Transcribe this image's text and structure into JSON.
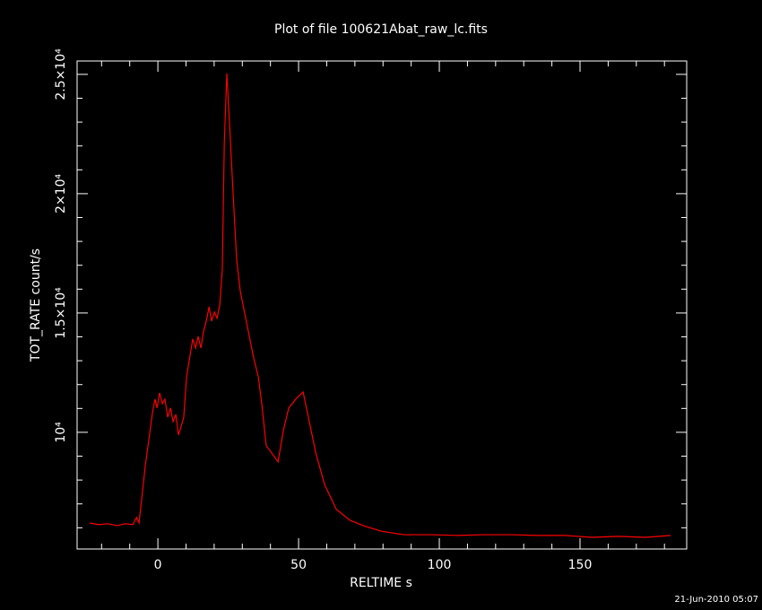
{
  "chart_data": {
    "type": "line",
    "title": "Plot of file 100621Abat_raw_lc.fits",
    "xlabel": "RELTIME  s",
    "ylabel": "TOT_RATE  count/s",
    "timestamp": "21-Jun-2010 05:07",
    "x": [
      -24.2,
      -21,
      -17.8,
      -14.6,
      -11.5,
      -8.9,
      -7.6,
      -6.7,
      -5.7,
      -4.5,
      -3.2,
      -1.9,
      -1.0,
      -0.3,
      0.6,
      1.6,
      2.5,
      3.5,
      4.5,
      5.4,
      6.4,
      7.3,
      8.3,
      9.2,
      10.2,
      11.5,
      12.4,
      13.4,
      14.3,
      15.3,
      16.2,
      17.2,
      18.2,
      19.1,
      20.1,
      21.0,
      22.0,
      22.9,
      23.6,
      24.5,
      25.5,
      26.8,
      28.0,
      29.3,
      30.9,
      32.5,
      34.1,
      35.7,
      36.9,
      38.5,
      40.4,
      42.7,
      44.6,
      46.5,
      49.0,
      51.6,
      53.8,
      56.1,
      59.2,
      63.4,
      68.2,
      72.9,
      79.3,
      87.3,
      96.8,
      106.4,
      115.9,
      125.5,
      135.0,
      144.6,
      154.1,
      163.7,
      173.2,
      182.2
    ],
    "series": [
      {
        "name": "TOT_RATE",
        "color": "#ff0000",
        "values": [
          6200,
          6130,
          6170,
          6090,
          6170,
          6130,
          6430,
          6200,
          7260,
          8570,
          9700,
          10830,
          11390,
          11020,
          11650,
          11200,
          11390,
          10640,
          11020,
          10450,
          10750,
          9890,
          10260,
          10640,
          12330,
          13270,
          13910,
          13530,
          14020,
          13530,
          14210,
          14660,
          15260,
          14660,
          15040,
          14780,
          15340,
          16840,
          22110,
          25040,
          22860,
          19850,
          17220,
          15900,
          14960,
          14020,
          13080,
          12330,
          11200,
          9440,
          9140,
          8760,
          10080,
          11020,
          11390,
          11690,
          10450,
          9140,
          7820,
          6770,
          6320,
          6090,
          5860,
          5710,
          5710,
          5680,
          5710,
          5710,
          5680,
          5680,
          5600,
          5640,
          5600,
          5680
        ]
      }
    ],
    "xlim": [
      -28.7,
      187.9
    ],
    "ylim": [
      5110,
      25560
    ],
    "xticks": [
      0,
      50,
      100,
      150
    ],
    "xminorticks": [
      -20,
      -10,
      10,
      20,
      30,
      40,
      60,
      70,
      80,
      90,
      110,
      120,
      130,
      140,
      160,
      170,
      180
    ],
    "yticks": [
      {
        "value": 10000,
        "label": "10⁴"
      },
      {
        "value": 15000,
        "label": "1.5×10⁴"
      },
      {
        "value": 20000,
        "label": "2×10⁴"
      },
      {
        "value": 25000,
        "label": "2.5×10⁴"
      }
    ],
    "yminorticks": [
      6000,
      7000,
      8000,
      9000,
      11000,
      12000,
      13000,
      14000,
      16000,
      17000,
      18000,
      19000,
      21000,
      22000,
      23000,
      24000
    ],
    "grid": false
  }
}
